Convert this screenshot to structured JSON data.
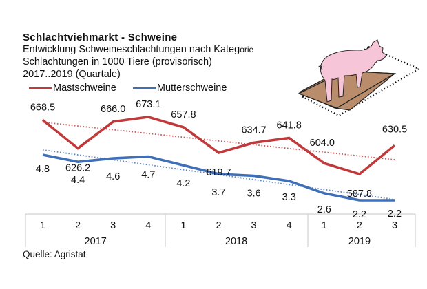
{
  "header": {
    "title": "Schlachtviehmarkt - Schweine",
    "subtitle_line1_main": "Entwicklung  Schweineschlachtungen nach Kateg",
    "subtitle_line1_tail": "orie",
    "subtitle_line2": "Schlachtungen in 1000 Tiere (provisorisch)",
    "subtitle_line3": "2017..2019 (Quartale)"
  },
  "footer": {
    "source": "Quelle: Agristat"
  },
  "illustration": {
    "icon": "pig-on-mat-icon"
  },
  "colors": {
    "mast": "#c0393b",
    "mutter": "#3f6fb6",
    "grid": "#d9d9d9"
  },
  "chart_data": {
    "type": "line",
    "title": "Schlachtviehmarkt - Schweine",
    "subtitle": "Entwicklung Schweineschlachtungen nach Kategorie; Schlachtungen in 1000 Tiere (provisorisch); 2017..2019 (Quartale)",
    "xlabel": "",
    "ylabel": "",
    "legend_position": "top-left",
    "grid": false,
    "categories": [
      "1",
      "2",
      "3",
      "4",
      "1",
      "2",
      "3",
      "4",
      "1",
      "2",
      "3"
    ],
    "category_groups": [
      {
        "label": "2017",
        "count": 4
      },
      {
        "label": "2018",
        "count": 4
      },
      {
        "label": "2019",
        "count": 3
      }
    ],
    "series": [
      {
        "name": "Mastschweine",
        "color": "#c0393b",
        "values": [
          668.5,
          626.2,
          666.0,
          673.1,
          657.8,
          619.7,
          634.7,
          641.8,
          604.0,
          587.8,
          630.5
        ],
        "labels": [
          "668.5",
          "626.2",
          "666.0",
          "673.1",
          "657.8",
          "619.7",
          "634.7",
          "641.8",
          "604.0",
          "587.8",
          "630.5"
        ],
        "trendline": "linear, dotted"
      },
      {
        "name": "Mutterschweine",
        "color": "#3f6fb6",
        "values": [
          4.8,
          4.4,
          4.6,
          4.7,
          4.2,
          3.7,
          3.6,
          3.3,
          2.6,
          2.2,
          2.2
        ],
        "labels": [
          "4.8",
          "4.4",
          "4.6",
          "4.7",
          "4.2",
          "3.7",
          "3.6",
          "3.3",
          "2.6",
          "2.2",
          "2.2"
        ],
        "trendline": "linear, dotted"
      }
    ]
  }
}
